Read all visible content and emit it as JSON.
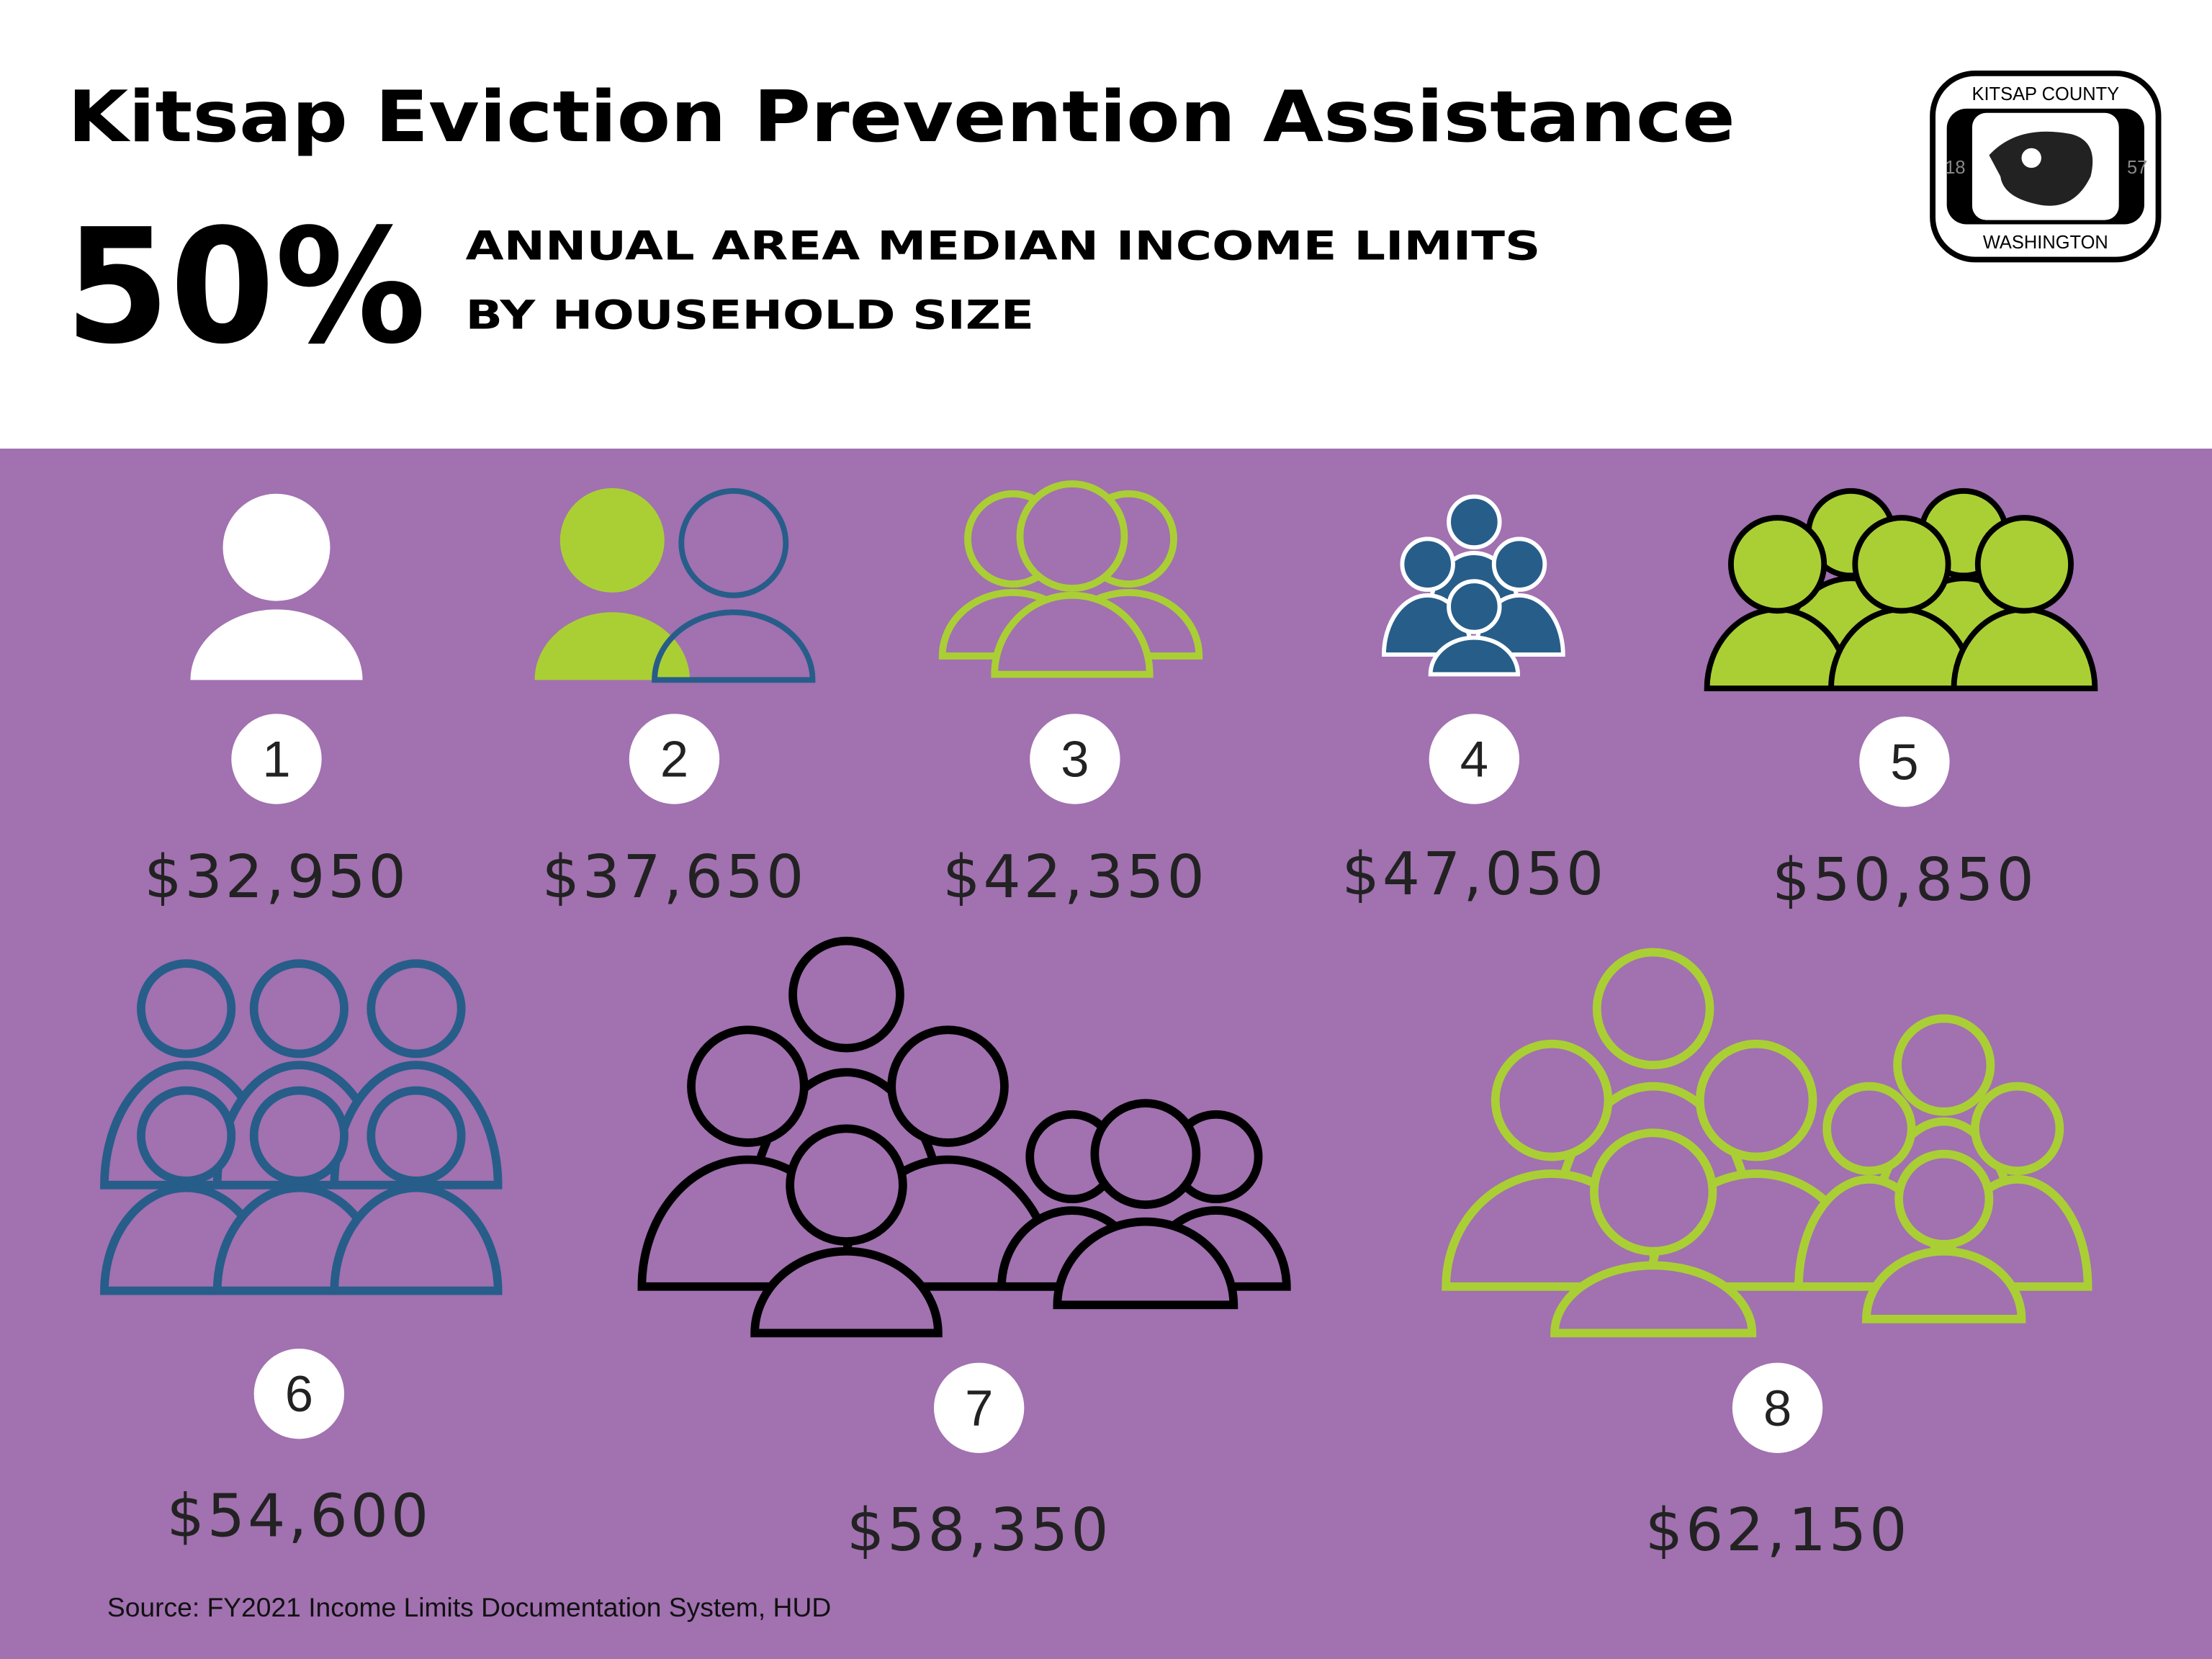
{
  "header": {
    "title": "Kitsap Eviction Prevention Assistance",
    "percent": "50%",
    "subtitle_line1": "ANNUAL AREA MEDIAN INCOME LIMITS",
    "subtitle_line2": "BY HOUSEHOLD SIZE"
  },
  "logo": {
    "top": "KITSAP COUNTY",
    "bottom": "WASHINGTON",
    "left": "18",
    "right": "57"
  },
  "households": [
    {
      "size": "1",
      "income": "$32,950"
    },
    {
      "size": "2",
      "income": "$37,650"
    },
    {
      "size": "3",
      "income": "$42,350"
    },
    {
      "size": "4",
      "income": "$47,050"
    },
    {
      "size": "5",
      "income": "$50,850"
    },
    {
      "size": "6",
      "income": "$54,600"
    },
    {
      "size": "7",
      "income": "$58,350"
    },
    {
      "size": "8",
      "income": "$62,150"
    }
  ],
  "source": "Source: FY2021 Income Limits Documentation System, HUD"
}
